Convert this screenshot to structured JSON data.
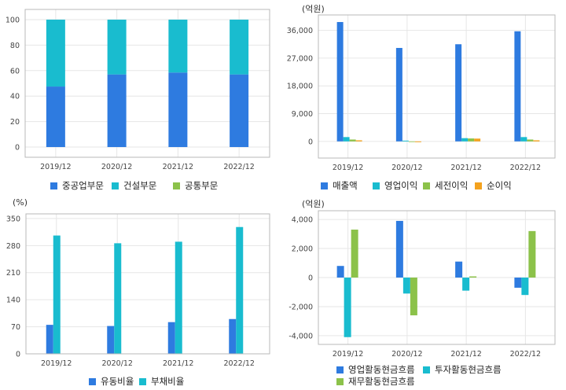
{
  "colors": {
    "blue": "#2e7be0",
    "cyan": "#19bccf",
    "green": "#8cc24a",
    "orange": "#f4a21e"
  },
  "chart_data": [
    {
      "id": "segment",
      "type": "bar",
      "stacked": true,
      "unit": "",
      "categories": [
        "2019/12",
        "2020/12",
        "2021/12",
        "2022/12"
      ],
      "ylim": [
        -8,
        108
      ],
      "yticks": [
        0,
        20,
        40,
        60,
        80,
        100
      ],
      "ytick_labels": [
        "0",
        "20",
        "40",
        "60",
        "80",
        "100"
      ],
      "grid": true,
      "legend_position": "bottom",
      "series": [
        {
          "name": "중공업부문",
          "color": "#2e7be0",
          "values": [
            47.5,
            57,
            58.5,
            57
          ]
        },
        {
          "name": "건설부문",
          "color": "#19bccf",
          "values": [
            52.5,
            43,
            41.5,
            43
          ]
        },
        {
          "name": "공통부문",
          "color": "#8cc24a",
          "values": [
            0,
            0,
            0,
            0
          ]
        }
      ]
    },
    {
      "id": "income",
      "type": "bar",
      "stacked": false,
      "unit": "(억원)",
      "categories": [
        "2019/12",
        "2020/12",
        "2021/12",
        "2022/12"
      ],
      "ylim": [
        -5400,
        41000
      ],
      "yticks": [
        0,
        9000,
        18000,
        27000,
        36000
      ],
      "ytick_labels": [
        "0",
        "9,000",
        "18,000",
        "27,000",
        "36,000"
      ],
      "grid": true,
      "legend_position": "bottom",
      "series": [
        {
          "name": "매출액",
          "color": "#2e7be0",
          "values": [
            38700,
            30300,
            31500,
            35700
          ]
        },
        {
          "name": "영업이익",
          "color": "#19bccf",
          "values": [
            1400,
            250,
            1050,
            1400
          ]
        },
        {
          "name": "세전이익",
          "color": "#8cc24a",
          "values": [
            600,
            -150,
            950,
            600
          ]
        },
        {
          "name": "순이익",
          "color": "#f4a21e",
          "values": [
            350,
            -250,
            900,
            350
          ]
        }
      ]
    },
    {
      "id": "ratios",
      "type": "bar",
      "stacked": false,
      "unit": "(%)",
      "categories": [
        "2019/12",
        "2020/12",
        "2021/12",
        "2022/12"
      ],
      "ylim": [
        0,
        362
      ],
      "yticks": [
        0,
        70,
        140,
        210,
        280,
        350
      ],
      "ytick_labels": [
        "0",
        "70",
        "140",
        "210",
        "280",
        "350"
      ],
      "grid": true,
      "legend_position": "bottom",
      "series": [
        {
          "name": "유동비율",
          "color": "#2e7be0",
          "values": [
            75,
            72,
            82,
            90
          ]
        },
        {
          "name": "부채비율",
          "color": "#19bccf",
          "values": [
            306,
            286,
            290,
            328
          ]
        }
      ]
    },
    {
      "id": "cashflow",
      "type": "bar",
      "stacked": false,
      "unit": "(억원)",
      "categories": [
        "2019/12",
        "2020/12",
        "2021/12",
        "2022/12"
      ],
      "ylim": [
        -4600,
        4600
      ],
      "yticks": [
        -4000,
        -2000,
        0,
        2000,
        4000
      ],
      "ytick_labels": [
        "-4,000",
        "-2,000",
        "0",
        "2,000",
        "4,000"
      ],
      "grid": true,
      "legend_position": "bottom",
      "series": [
        {
          "name": "영업활동현금흐름",
          "color": "#2e7be0",
          "values": [
            800,
            3900,
            1100,
            -700
          ]
        },
        {
          "name": "투자활동현금흐름",
          "color": "#19bccf",
          "values": [
            -4100,
            -1100,
            -900,
            -1200
          ]
        },
        {
          "name": "재무활동현금흐름",
          "color": "#8cc24a",
          "values": [
            3300,
            -2600,
            80,
            3200
          ]
        }
      ]
    }
  ]
}
